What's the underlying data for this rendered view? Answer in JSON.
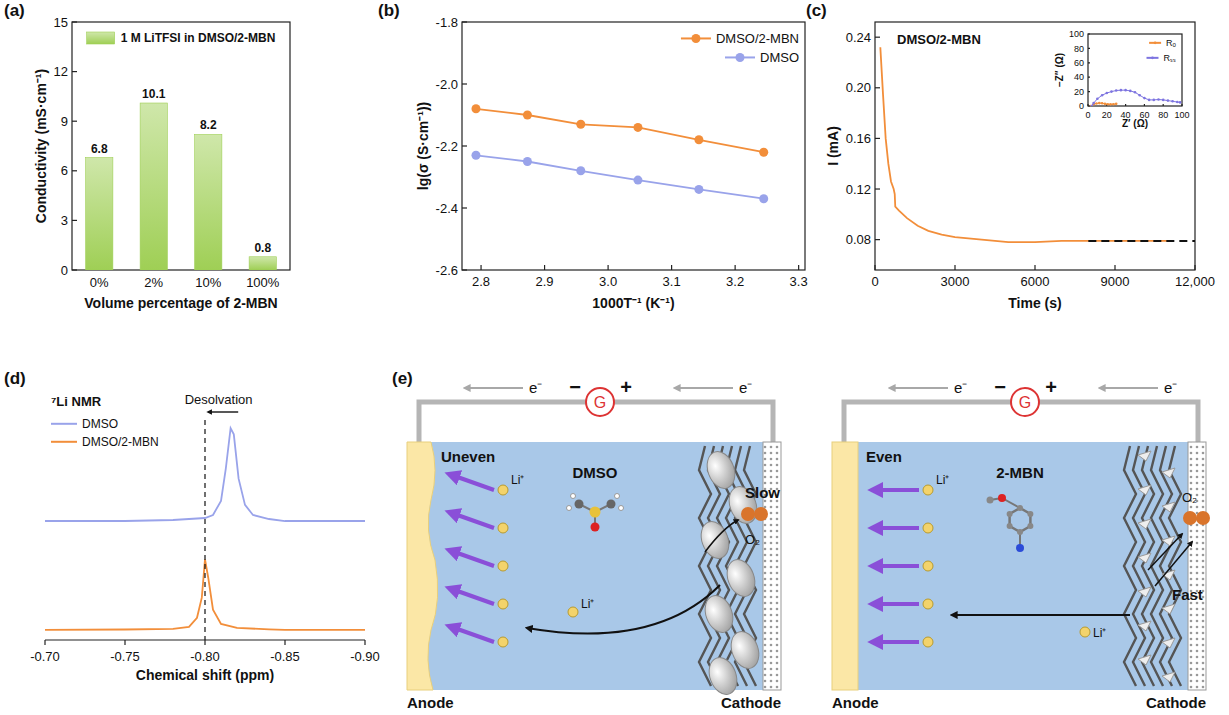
{
  "chart_data": [
    {
      "panel": "(a)",
      "type": "bar",
      "categories": [
        "0%",
        "2%",
        "10%",
        "100%"
      ],
      "series": [
        {
          "name": "1 M LiTFSI in DMSO/2-MBN",
          "color": "#9fcf55",
          "values": [
            6.8,
            10.1,
            8.2,
            0.8
          ]
        }
      ],
      "x_label": "Volume percentage of 2-MBN",
      "y_label": "Conductivity (mS·cm⁻¹)",
      "ylim": [
        0,
        15
      ],
      "yticks": [
        0,
        3,
        6,
        9,
        12,
        15
      ],
      "data_labels": true,
      "legend": "top"
    },
    {
      "panel": "(b)",
      "type": "line",
      "marker": "circle",
      "x": [
        2.792,
        2.873,
        2.957,
        3.047,
        3.143,
        3.245
      ],
      "series": [
        {
          "name": "DMSO/2-MBN",
          "color": "#f28e3a",
          "values": [
            -2.08,
            -2.1,
            -2.13,
            -2.14,
            -2.18,
            -2.22
          ]
        },
        {
          "name": "DMSO",
          "color": "#99a3ea",
          "values": [
            -2.23,
            -2.25,
            -2.28,
            -2.31,
            -2.34,
            -2.37
          ]
        }
      ],
      "x_label": "1000T⁻¹ (K⁻¹)",
      "y_label": "lg(σ (S·cm⁻¹))",
      "xlim": [
        2.77,
        3.31
      ],
      "xticks": [
        2.8,
        2.9,
        {
          "value": 3,
          "label": "3.0"
        },
        3.1,
        3.2,
        3.3
      ],
      "ylim": [
        -2.6,
        -1.8
      ],
      "yticks": [
        -2.6,
        -2.4,
        -2.2,
        {
          "value": -2,
          "label": "-2.0"
        },
        -1.8
      ],
      "legend": "top-right"
    },
    {
      "panel": "(c)",
      "type": "line",
      "annotation": "DMSO/2-MBN",
      "x": [
        200,
        300,
        400,
        500,
        600,
        700,
        740,
        760,
        900,
        1200,
        1600,
        2000,
        2500,
        3000,
        4000,
        5000,
        6000,
        7000,
        8000,
        9000,
        10000,
        11000
      ],
      "series": [
        {
          "color": "#f28e3a",
          "values": [
            0.232,
            0.195,
            0.16,
            0.14,
            0.126,
            0.12,
            0.116,
            0.106,
            0.103,
            0.097,
            0.091,
            0.087,
            0.084,
            0.082,
            0.08,
            0.078,
            0.078,
            0.079,
            0.079,
            0.079,
            0.079,
            0.079
          ]
        }
      ],
      "reference_line": {
        "value": 0.079,
        "from": 8000
      },
      "x_label": "Time (s)",
      "y_label": "I (mA)",
      "xlim": [
        0,
        12000
      ],
      "xticks": [
        0,
        3000,
        6000,
        9000,
        {
          "value": 12000,
          "label": "12,000"
        }
      ],
      "ylim": [
        0.056,
        0.252
      ],
      "yticks": [
        0.08,
        0.12,
        0.16,
        {
          "value": 0.2,
          "label": "0.20"
        },
        0.24
      ]
    },
    {
      "type": "line",
      "marker": "circle",
      "series": [
        {
          "name": "Rₒ",
          "color": "#f28e3a",
          "x": [
            3,
            6,
            9,
            12,
            15,
            18,
            21,
            24,
            27,
            30
          ],
          "values": [
            0,
            2.5,
            3.5,
            4,
            3.8,
            3,
            2.5,
            2.3,
            2.5,
            3
          ]
        },
        {
          "name": "Rₛₛ",
          "color": "#7d74e0",
          "x": [
            4,
            6,
            10,
            15,
            20,
            25,
            30,
            35,
            40,
            45,
            50,
            55,
            60,
            65,
            70,
            75,
            80,
            85,
            90,
            95,
            98
          ],
          "values": [
            0,
            4,
            10,
            15,
            18,
            20,
            21.5,
            22,
            22,
            21,
            19,
            15,
            11,
            8.5,
            8.5,
            9,
            8.5,
            7.5,
            6.5,
            5.5,
            5
          ]
        }
      ],
      "x_label": "Z′ (Ω)",
      "y_label": "−Z″ (Ω)",
      "xlim": [
        0,
        100
      ],
      "xticks": [
        0,
        20,
        40,
        60,
        80,
        100
      ],
      "ylim": [
        0,
        100
      ],
      "yticks": [
        0,
        20,
        40,
        60,
        80,
        100
      ],
      "legend": "top-right"
    },
    {
      "panel": "(d)",
      "type": "line",
      "annotation": "⁷Li NMR",
      "shift_label": "Desolvation",
      "shift": {
        "from": -0.817,
        "to": -0.8
      },
      "series": [
        {
          "name": "DMSO",
          "color": "#99a3ea",
          "x": [
            -0.7,
            -0.75,
            -0.78,
            -0.8,
            -0.805,
            -0.81,
            -0.813,
            -0.816,
            -0.818,
            -0.821,
            -0.825,
            -0.83,
            -0.84,
            -0.85,
            -0.9
          ],
          "values": [
            54,
            54,
            54.5,
            55.5,
            57,
            64,
            80,
            100,
            97,
            75,
            62,
            57,
            55,
            54,
            54
          ]
        },
        {
          "name": "DMSO/2-MBN",
          "color": "#f28e3a",
          "x": [
            -0.7,
            -0.75,
            -0.78,
            -0.79,
            -0.795,
            -0.798,
            -0.8,
            -0.802,
            -0.805,
            -0.81,
            -0.82,
            -0.84,
            -0.85,
            -0.9
          ],
          "values": [
            0,
            0.2,
            0.5,
            1.5,
            6,
            16,
            35,
            26,
            10,
            3,
            1,
            0.3,
            0,
            0
          ]
        }
      ],
      "x_label": "Chemical shift (ppm)",
      "xlim": [
        -0.7,
        -0.9
      ],
      "xticks": [
        {
          "value": -0.7,
          "label": "-0.70"
        },
        -0.75,
        {
          "value": -0.8,
          "label": "-0.80"
        },
        -0.85,
        {
          "value": -0.9,
          "label": "-0.90"
        }
      ],
      "ylim": [
        -5,
        115
      ],
      "tick_labels": "x",
      "legend": "top-left"
    }
  ],
  "diagram": {
    "panel": "(e)",
    "electron_label": "e⁻",
    "meter_label": "G",
    "minus": "−",
    "plus": "+",
    "li_label": "Li⁺",
    "o2_label": "O₂",
    "anode_label": "Anode",
    "cathode_label": "Cathode",
    "panels": [
      {
        "deposit": "Uneven",
        "solvent": "DMSO",
        "kinetics": "Slow"
      },
      {
        "deposit": "Even",
        "solvent": "2-MBN",
        "kinetics": "Fast"
      }
    ]
  }
}
